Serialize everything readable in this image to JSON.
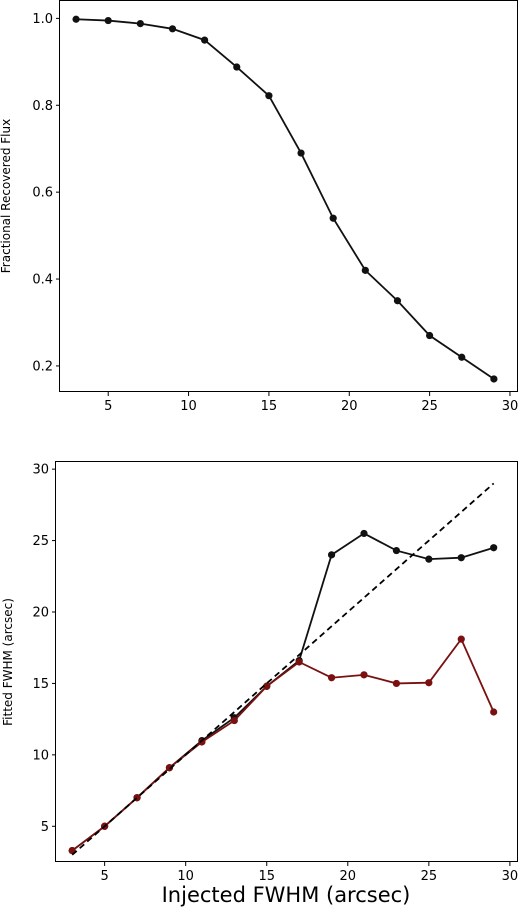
{
  "chart_data": [
    {
      "type": "line",
      "title": "",
      "xlabel": "",
      "ylabel": "Fractional Recovered Flux",
      "xlim": [
        2,
        30.5
      ],
      "ylim": [
        0.14,
        1.04
      ],
      "xticks": [
        5,
        10,
        15,
        20,
        25,
        30
      ],
      "yticks": [
        0.2,
        0.4,
        0.6,
        0.8,
        1.0
      ],
      "ytick_labels": [
        "0.2",
        "0.4",
        "0.6",
        "0.8",
        "1.0"
      ],
      "grid": false,
      "series": [
        {
          "color": "#111111",
          "marker": "circle",
          "line": "solid",
          "x": [
            3,
            5,
            7,
            9,
            11,
            13,
            15,
            17,
            19,
            21,
            23,
            25,
            27,
            29
          ],
          "y": [
            0.998,
            0.995,
            0.988,
            0.976,
            0.95,
            0.888,
            0.822,
            0.69,
            0.54,
            0.42,
            0.35,
            0.27,
            0.22,
            0.17
          ]
        }
      ]
    },
    {
      "type": "line",
      "title": "",
      "xlabel": "Injected FWHM (arcsec)",
      "ylabel": "Fitted FWHM (arcsec)",
      "xlim": [
        2,
        30.5
      ],
      "ylim": [
        2.5,
        30.5
      ],
      "xticks": [
        5,
        10,
        15,
        20,
        25,
        30
      ],
      "yticks": [
        5,
        10,
        15,
        20,
        25,
        30
      ],
      "grid": false,
      "series": [
        {
          "color": "#111111",
          "marker": "circle",
          "line": "solid",
          "x": [
            3,
            5,
            7,
            9,
            11,
            13,
            15,
            17,
            19,
            21,
            23,
            25,
            27,
            29
          ],
          "y": [
            3.3,
            5.0,
            7.0,
            9.1,
            11.0,
            12.6,
            14.8,
            16.6,
            24.0,
            25.5,
            24.3,
            23.7,
            23.8,
            24.5
          ]
        },
        {
          "color": "#7a1010",
          "marker": "circle",
          "line": "solid",
          "x": [
            3,
            5,
            7,
            9,
            11,
            13,
            15,
            17,
            19,
            21,
            23,
            25,
            27,
            29
          ],
          "y": [
            3.3,
            5.0,
            7.0,
            9.1,
            10.9,
            12.4,
            14.8,
            16.5,
            15.4,
            15.6,
            15.0,
            15.05,
            18.1,
            13.0
          ]
        },
        {
          "color": "#000000",
          "marker": "none",
          "line": "dashed",
          "x": [
            3,
            29
          ],
          "y": [
            3,
            29
          ]
        }
      ]
    }
  ]
}
